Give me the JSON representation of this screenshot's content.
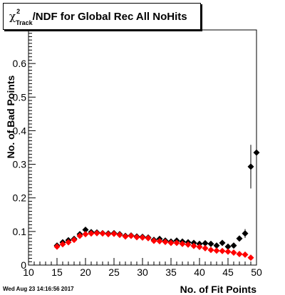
{
  "chart_data": {
    "type": "scatter",
    "title": {
      "symbol": "χ",
      "superscript": "2",
      "subscript": "Track",
      "text": "/NDF for Global Rec All NoHits"
    },
    "xlabel": "No. of Fit Points",
    "ylabel": "No. of Bad Points",
    "xlim": [
      10,
      50
    ],
    "ylim": [
      0,
      0.7
    ],
    "x_ticks": [
      "10",
      "15",
      "20",
      "25",
      "30",
      "35",
      "40",
      "45",
      "50"
    ],
    "y_ticks": [
      "0",
      "0.1",
      "0.2",
      "0.3",
      "0.4",
      "0.5",
      "0.6"
    ],
    "grid": false,
    "series": [
      {
        "color": "#000000",
        "marker": "diamond",
        "points": [
          {
            "x": 15,
            "y": 0.058
          },
          {
            "x": 16,
            "y": 0.068
          },
          {
            "x": 17,
            "y": 0.074
          },
          {
            "x": 18,
            "y": 0.078
          },
          {
            "x": 19,
            "y": 0.092
          },
          {
            "x": 20,
            "y": 0.105
          },
          {
            "x": 21,
            "y": 0.098
          },
          {
            "x": 22,
            "y": 0.097
          },
          {
            "x": 23,
            "y": 0.095
          },
          {
            "x": 24,
            "y": 0.094
          },
          {
            "x": 25,
            "y": 0.095
          },
          {
            "x": 26,
            "y": 0.092
          },
          {
            "x": 27,
            "y": 0.087
          },
          {
            "x": 28,
            "y": 0.088
          },
          {
            "x": 29,
            "y": 0.085
          },
          {
            "x": 30,
            "y": 0.084
          },
          {
            "x": 31,
            "y": 0.082
          },
          {
            "x": 32,
            "y": 0.075
          },
          {
            "x": 33,
            "y": 0.078
          },
          {
            "x": 34,
            "y": 0.073
          },
          {
            "x": 35,
            "y": 0.07
          },
          {
            "x": 36,
            "y": 0.073
          },
          {
            "x": 37,
            "y": 0.07
          },
          {
            "x": 38,
            "y": 0.068
          },
          {
            "x": 39,
            "y": 0.066
          },
          {
            "x": 40,
            "y": 0.063
          },
          {
            "x": 41,
            "y": 0.065
          },
          {
            "x": 42,
            "y": 0.063
          },
          {
            "x": 43,
            "y": 0.058
          },
          {
            "x": 44,
            "y": 0.066
          },
          {
            "x": 45,
            "y": 0.055
          },
          {
            "x": 46,
            "y": 0.058
          },
          {
            "x": 47,
            "y": 0.079
          },
          {
            "x": 48,
            "y": 0.094,
            "err": 0.013
          },
          {
            "x": 49,
            "y": 0.293,
            "err": 0.065
          },
          {
            "x": 50,
            "y": 0.335,
            "err": 0.33
          }
        ]
      },
      {
        "color": "#ff0000",
        "marker": "diamond",
        "points": [
          {
            "x": 15,
            "y": 0.055
          },
          {
            "x": 16,
            "y": 0.062
          },
          {
            "x": 17,
            "y": 0.068
          },
          {
            "x": 18,
            "y": 0.075
          },
          {
            "x": 19,
            "y": 0.087
          },
          {
            "x": 20,
            "y": 0.092
          },
          {
            "x": 21,
            "y": 0.094
          },
          {
            "x": 22,
            "y": 0.095
          },
          {
            "x": 23,
            "y": 0.094
          },
          {
            "x": 24,
            "y": 0.092
          },
          {
            "x": 25,
            "y": 0.093
          },
          {
            "x": 26,
            "y": 0.09
          },
          {
            "x": 27,
            "y": 0.085
          },
          {
            "x": 28,
            "y": 0.087
          },
          {
            "x": 29,
            "y": 0.083
          },
          {
            "x": 30,
            "y": 0.082
          },
          {
            "x": 31,
            "y": 0.08
          },
          {
            "x": 32,
            "y": 0.072
          },
          {
            "x": 33,
            "y": 0.071
          },
          {
            "x": 34,
            "y": 0.069
          },
          {
            "x": 35,
            "y": 0.066
          },
          {
            "x": 36,
            "y": 0.066
          },
          {
            "x": 37,
            "y": 0.063
          },
          {
            "x": 38,
            "y": 0.061
          },
          {
            "x": 39,
            "y": 0.057
          },
          {
            "x": 40,
            "y": 0.054
          },
          {
            "x": 41,
            "y": 0.05
          },
          {
            "x": 42,
            "y": 0.045
          },
          {
            "x": 43,
            "y": 0.043
          },
          {
            "x": 44,
            "y": 0.042
          },
          {
            "x": 45,
            "y": 0.04
          },
          {
            "x": 46,
            "y": 0.037
          },
          {
            "x": 47,
            "y": 0.033
          },
          {
            "x": 48,
            "y": 0.031
          },
          {
            "x": 49,
            "y": 0.022
          }
        ]
      }
    ]
  },
  "timestamp": "Wed Aug 23 14:16:56 2017"
}
